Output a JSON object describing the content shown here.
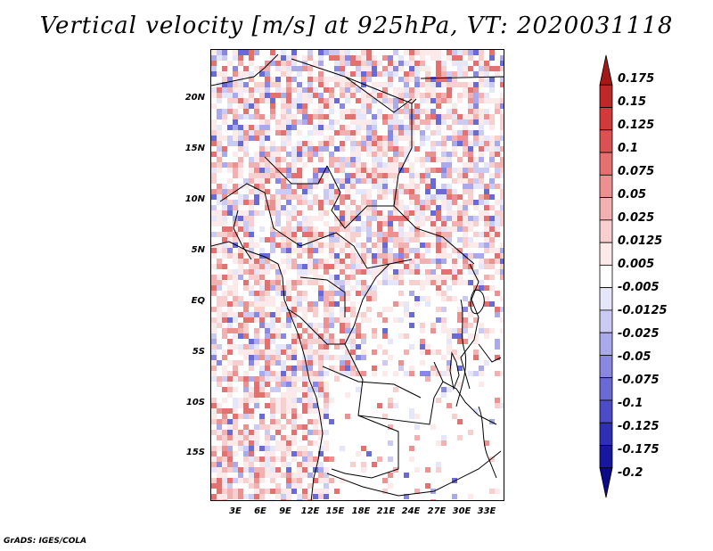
{
  "title": "Vertical velocity [m/s] at 925hPa, VT: 2020031118",
  "footer": "GrADS: IGES/COLA",
  "map": {
    "lat_labels": [
      "20N",
      "15N",
      "10N",
      "5N",
      "EQ",
      "5S",
      "10S",
      "15S"
    ],
    "lon_labels": [
      "3E",
      "6E",
      "9E",
      "12E",
      "15E",
      "18E",
      "21E",
      "24E",
      "27E",
      "30E",
      "33E"
    ]
  },
  "colorbar": {
    "labels": [
      "0.175",
      "0.15",
      "0.125",
      "0.1",
      "0.075",
      "0.05",
      "0.025",
      "0.0125",
      "0.005",
      "-0.005",
      "-0.0125",
      "-0.025",
      "-0.05",
      "-0.075",
      "-0.1",
      "-0.125",
      "-0.175",
      "-0.2"
    ],
    "colors": [
      "#a51818",
      "#be2828",
      "#d03a3a",
      "#dc5252",
      "#e57070",
      "#ed9090",
      "#f3b0b0",
      "#f8cfcf",
      "#fceaea",
      "#ffffff",
      "#e6e6fa",
      "#cacaf2",
      "#a9a9ec",
      "#8888e2",
      "#6a6ad6",
      "#4c4cc8",
      "#2f2fb6",
      "#1717a0",
      "#0b0b88"
    ]
  }
}
